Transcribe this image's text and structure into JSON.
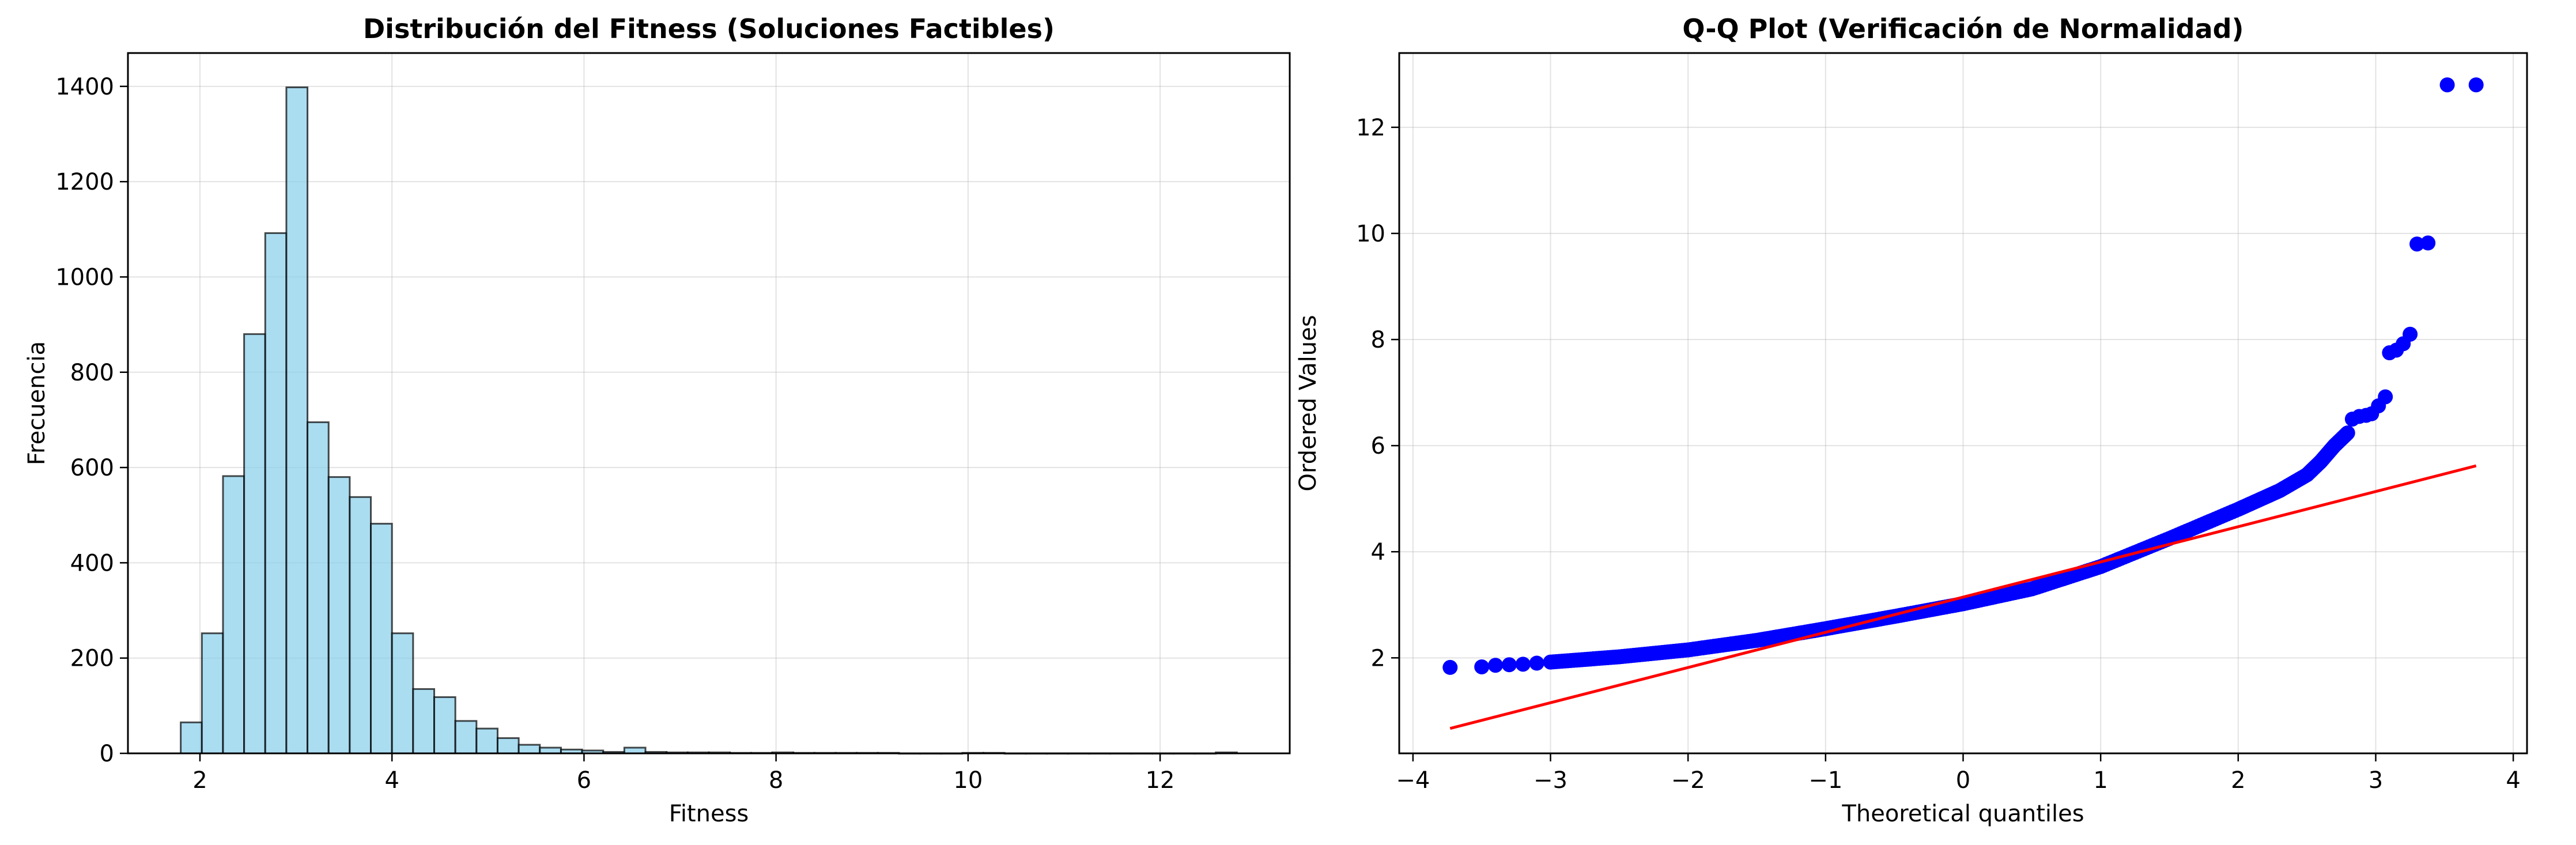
{
  "chart_data": [
    {
      "type": "bar",
      "title": "Distribución del Fitness (Soluciones Factibles)",
      "xlabel": "Fitness",
      "ylabel": "Frecuencia",
      "xlim": [
        1.25,
        13.35
      ],
      "ylim": [
        0,
        1470
      ],
      "xticks": [
        2,
        4,
        6,
        8,
        10,
        12
      ],
      "yticks": [
        0,
        200,
        400,
        600,
        800,
        1000,
        1200,
        1400
      ],
      "grid": true,
      "bin_start": 1.8,
      "bin_width": 0.22,
      "values": [
        65,
        252,
        582,
        880,
        1092,
        1398,
        695,
        580,
        538,
        482,
        252,
        135,
        118,
        68,
        52,
        32,
        18,
        12,
        8,
        6,
        3,
        12,
        3,
        2,
        2,
        2,
        1,
        1,
        2,
        1,
        1,
        1,
        1,
        1,
        0,
        0,
        0,
        1,
        1,
        0,
        0,
        0,
        0,
        0,
        0,
        0,
        0,
        0,
        0,
        2
      ],
      "bar_color": "#87ceeb",
      "edge_color": "#000000"
    },
    {
      "type": "scatter",
      "title": "Q-Q Plot (Verificación de Normalidad)",
      "xlabel": "Theoretical quantiles",
      "ylabel": "Ordered Values",
      "xlim": [
        -4.1,
        4.1
      ],
      "ylim": [
        0.2,
        13.4
      ],
      "xticks": [
        -4,
        -3,
        -2,
        -1,
        0,
        1,
        2,
        3,
        4
      ],
      "xtick_labels": [
        "−4",
        "−3",
        "−2",
        "−1",
        "0",
        "1",
        "2",
        "3",
        "4"
      ],
      "yticks": [
        2,
        4,
        6,
        8,
        10,
        12
      ],
      "grid": true,
      "point_color": "#0000ff",
      "line_color": "#ff0000",
      "fit_line": {
        "x": [
          -3.73,
          3.73
        ],
        "y": [
          0.67,
          5.62
        ]
      },
      "curve_points": [
        [
          -3.0,
          1.92
        ],
        [
          -2.5,
          2.02
        ],
        [
          -2.0,
          2.15
        ],
        [
          -1.5,
          2.33
        ],
        [
          -1.0,
          2.55
        ],
        [
          -0.5,
          2.78
        ],
        [
          0.0,
          3.02
        ],
        [
          0.5,
          3.3
        ],
        [
          1.0,
          3.72
        ],
        [
          1.5,
          4.25
        ],
        [
          2.0,
          4.8
        ],
        [
          2.3,
          5.15
        ],
        [
          2.5,
          5.45
        ],
        [
          2.6,
          5.7
        ],
        [
          2.7,
          6.0
        ],
        [
          2.8,
          6.25
        ]
      ],
      "points": [
        [
          -3.73,
          1.82
        ],
        [
          -3.5,
          1.83
        ],
        [
          -3.4,
          1.86
        ],
        [
          -3.3,
          1.87
        ],
        [
          -3.2,
          1.88
        ],
        [
          -3.1,
          1.9
        ],
        [
          2.83,
          6.5
        ],
        [
          2.88,
          6.55
        ],
        [
          2.93,
          6.57
        ],
        [
          2.97,
          6.6
        ],
        [
          3.02,
          6.75
        ],
        [
          3.07,
          6.92
        ],
        [
          3.1,
          7.75
        ],
        [
          3.15,
          7.8
        ],
        [
          3.2,
          7.92
        ],
        [
          3.25,
          8.1
        ],
        [
          3.3,
          9.8
        ],
        [
          3.38,
          9.82
        ],
        [
          3.52,
          12.8
        ],
        [
          3.73,
          12.8
        ]
      ]
    }
  ]
}
